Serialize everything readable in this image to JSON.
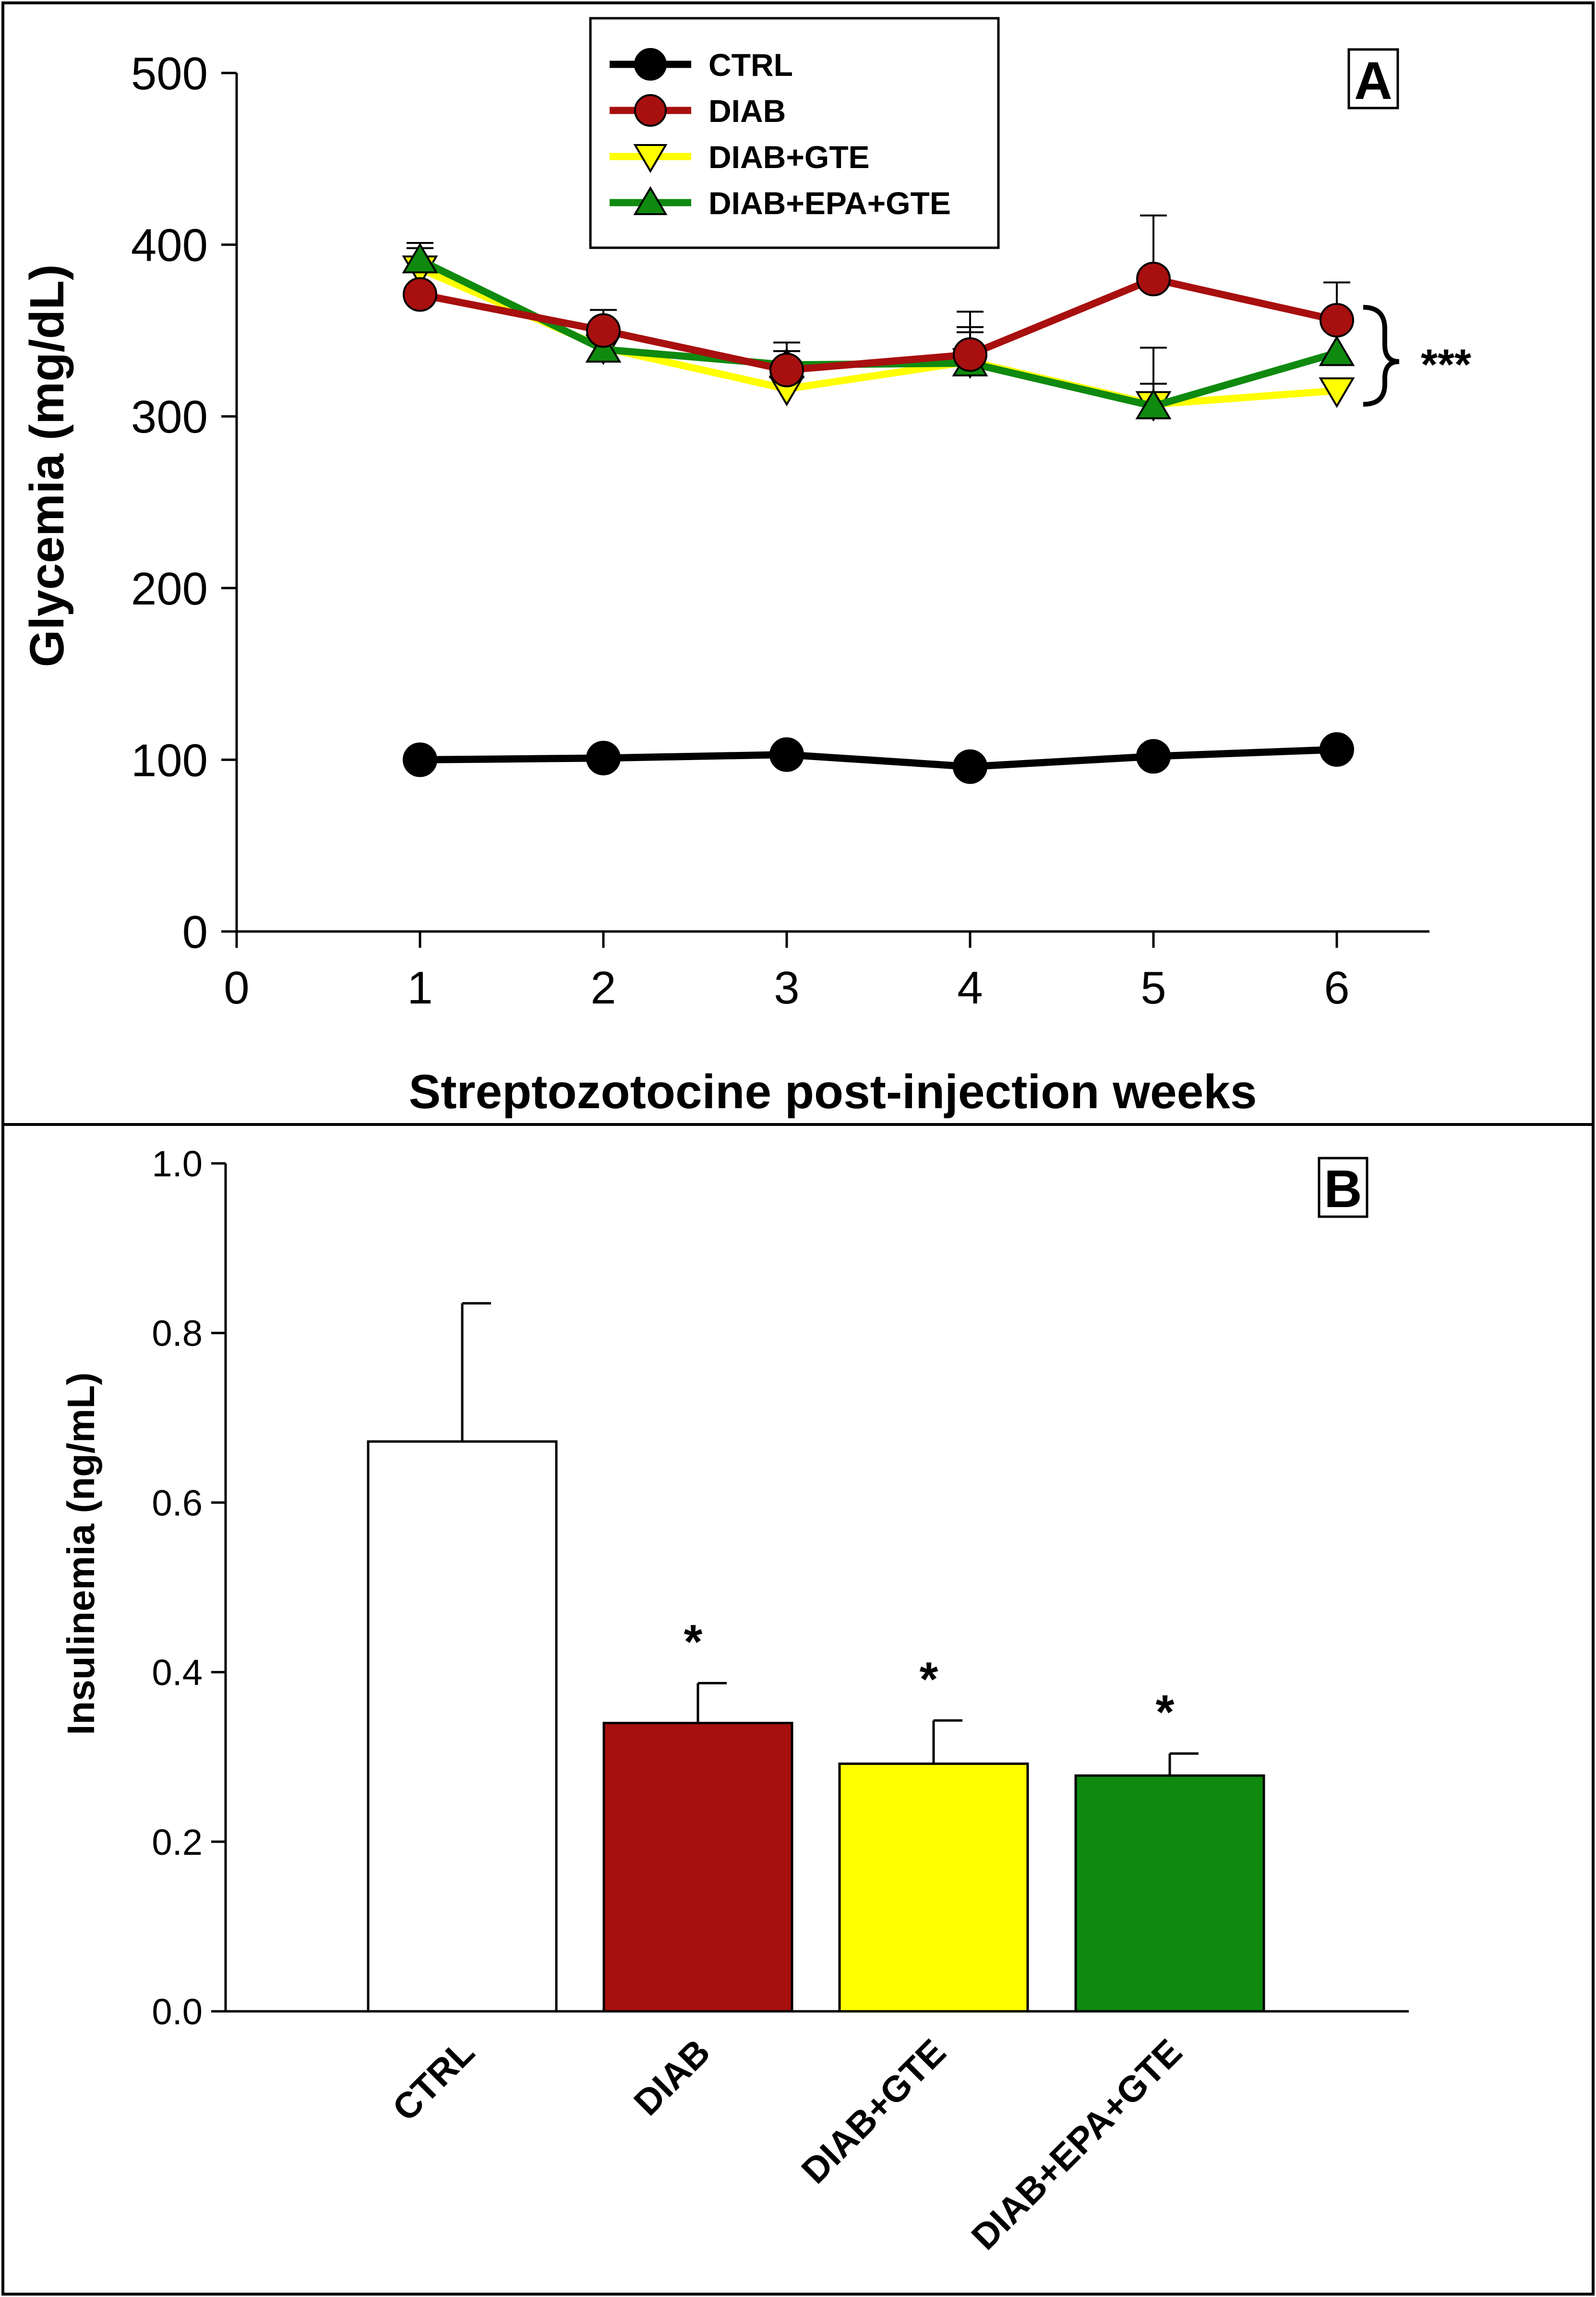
{
  "chart_data": [
    {
      "type": "line",
      "panel_label": "A",
      "title": "",
      "xlabel": "Streptozotocine post-injection weeks",
      "ylabel": "Glycemia (mg/dL)",
      "xlim": [
        0,
        6.5
      ],
      "ylim": [
        0,
        500
      ],
      "xticks": [
        "0",
        "1",
        "2",
        "3",
        "4",
        "5",
        "6"
      ],
      "yticks": [
        "0",
        "100",
        "200",
        "300",
        "400",
        "500"
      ],
      "x": [
        1,
        2,
        3,
        4,
        5,
        6
      ],
      "grid": false,
      "legend": "top-center",
      "significance_label": "***",
      "series": [
        {
          "name": "CTRL",
          "color": "#000000",
          "marker": "circle",
          "values": [
            100,
            101,
            103,
            96,
            102,
            106
          ],
          "errors": [
            0,
            0,
            0,
            0,
            0,
            0
          ]
        },
        {
          "name": "DIAB",
          "color": "#a80f0f",
          "marker": "circle",
          "values": [
            371,
            350,
            327,
            336,
            380,
            356
          ],
          "errors": [
            0,
            12,
            16,
            25,
            37,
            22
          ]
        },
        {
          "name": "DIAB+GTE",
          "color": "#ffff00",
          "marker": "triangle-down",
          "values": [
            386,
            340,
            316,
            332,
            307,
            315
          ],
          "errors": [
            12,
            0,
            22,
            20,
            12,
            0
          ]
        },
        {
          "name": "DIAB+EPA+GTE",
          "color": "#0f8a0f",
          "marker": "triangle-up",
          "values": [
            391,
            339,
            330,
            331,
            306,
            337
          ],
          "errors": [
            10,
            0,
            0,
            18,
            34,
            18
          ]
        }
      ]
    },
    {
      "type": "bar",
      "panel_label": "B",
      "title": "",
      "xlabel": "",
      "ylabel": "Insulinemia (ng/mL)",
      "ylim": [
        0,
        1.0
      ],
      "yticks": [
        "0.0",
        "0.2",
        "0.4",
        "0.6",
        "0.8",
        "1.0"
      ],
      "categories": [
        "CTRL",
        "DIAB",
        "DIAB+GTE",
        "DIAB+EPA+GTE"
      ],
      "values": [
        0.672,
        0.34,
        0.292,
        0.278
      ],
      "errors": [
        0.163,
        0.047,
        0.051,
        0.026
      ],
      "colors": [
        "#ffffff",
        "#a80f0f",
        "#ffff00",
        "#0f8a0f"
      ],
      "annotations": [
        "",
        "*",
        "*",
        "*"
      ],
      "grid": false
    }
  ]
}
